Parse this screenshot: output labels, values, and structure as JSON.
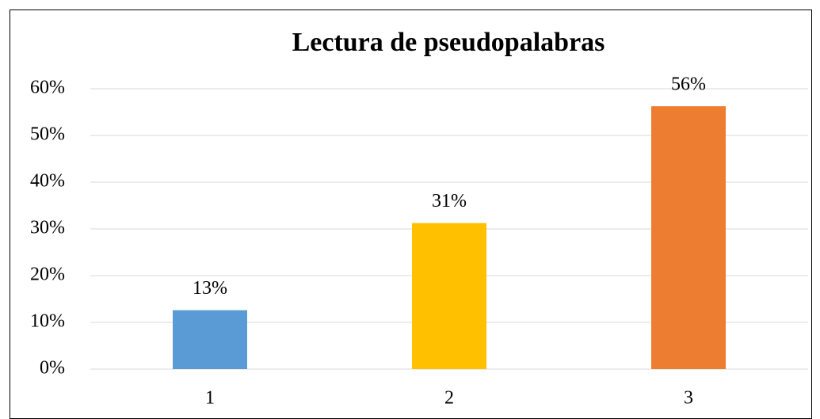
{
  "chart_data": {
    "type": "bar",
    "title": "Lectura de pseudopalabras",
    "categories": [
      "1",
      "2",
      "3"
    ],
    "values": [
      12.6,
      31.25,
      56.25
    ],
    "value_labels": [
      "13%",
      "31%",
      "56%"
    ],
    "colors": [
      "#5b9bd5",
      "#ffc000",
      "#ed7d31"
    ],
    "ylim": [
      0,
      60
    ],
    "yticks": [
      {
        "value": 0,
        "label": "0%"
      },
      {
        "value": 10,
        "label": "10%"
      },
      {
        "value": 20,
        "label": "20%"
      },
      {
        "value": 30,
        "label": "30%"
      },
      {
        "value": 40,
        "label": "40%"
      },
      {
        "value": 50,
        "label": "50%"
      },
      {
        "value": 60,
        "label": "60%"
      }
    ],
    "grid": true
  }
}
